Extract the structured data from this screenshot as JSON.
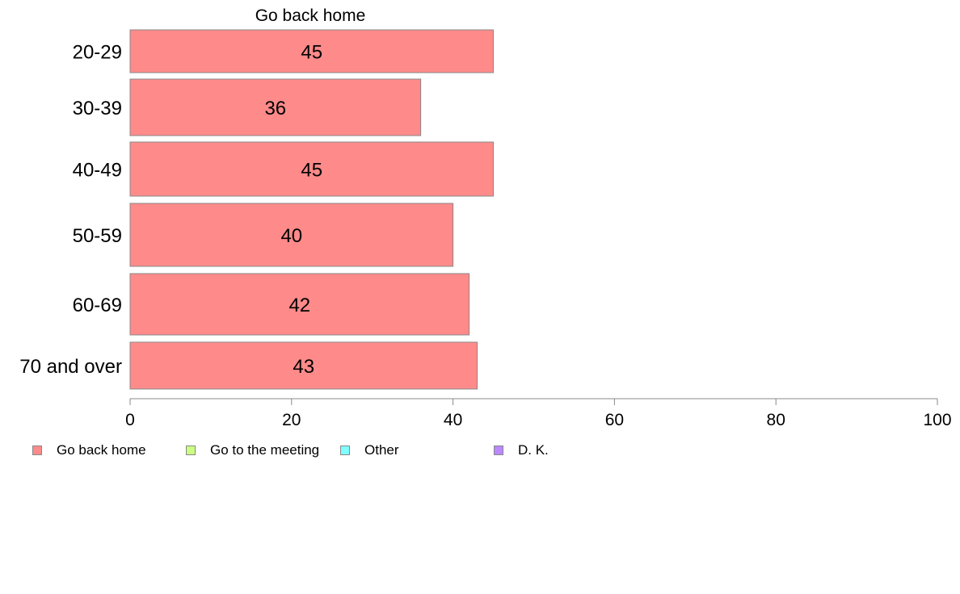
{
  "chart_data": {
    "type": "bar",
    "orientation": "horizontal",
    "title": "Go back home",
    "categories": [
      "20-29",
      "30-39",
      "40-49",
      "50-59",
      "60-69",
      "70 and over"
    ],
    "series": [
      {
        "name": "Go back home",
        "values": [
          45,
          36,
          45,
          40,
          42,
          43
        ],
        "color": "#ff8a8a"
      }
    ],
    "data_labels": [
      "45",
      "36",
      "45",
      "40",
      "42",
      "43"
    ],
    "xlim": [
      0,
      100
    ],
    "xticks": [
      0,
      20,
      40,
      60,
      80,
      100
    ],
    "xtick_labels": [
      "0",
      "20",
      "40",
      "60",
      "80",
      "100"
    ],
    "xlabel": "",
    "ylabel": "",
    "grid": false,
    "legend_position": "bottom-left",
    "legend": [
      {
        "label": "Go back home",
        "color": "#ff8a8a"
      },
      {
        "label": "Go to the meeting",
        "color": "#ccff80"
      },
      {
        "label": "Other",
        "color": "#80ffff"
      },
      {
        "label": "D. K.",
        "color": "#bb88ff"
      }
    ]
  }
}
